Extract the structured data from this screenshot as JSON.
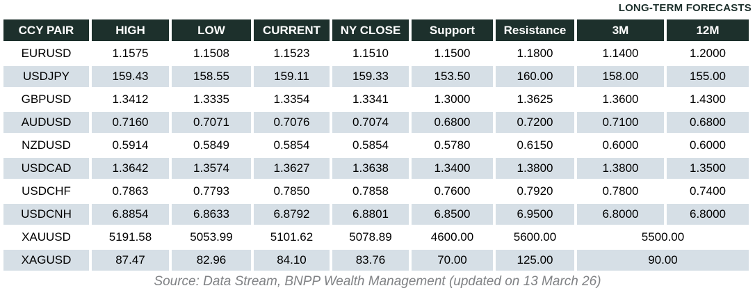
{
  "page": {
    "forecast_group_label": "LONG-TERM FORECASTS",
    "source_note": "Source: Data Stream, BNPP Wealth Management (updated on 13 March 26)"
  },
  "colors": {
    "header_bg": "#1d302c",
    "header_text": "#ffffff",
    "row_alt_bg": "#d6dfe6",
    "source_color": "#808285"
  },
  "table": {
    "columns": [
      "CCY PAIR",
      "HIGH",
      "LOW",
      "CURRENT",
      "NY CLOSE",
      "Support",
      "Resistance",
      "3M",
      "12M"
    ],
    "rows": [
      {
        "pair": "EURUSD",
        "high": "1.1575",
        "low": "1.1508",
        "current": "1.1523",
        "ny_close": "1.1510",
        "support": "1.1500",
        "resistance": "1.1800",
        "m3": "1.1400",
        "m12": "1.2000"
      },
      {
        "pair": "USDJPY",
        "high": "159.43",
        "low": "158.55",
        "current": "159.11",
        "ny_close": "159.33",
        "support": "153.50",
        "resistance": "160.00",
        "m3": "158.00",
        "m12": "155.00"
      },
      {
        "pair": "GBPUSD",
        "high": "1.3412",
        "low": "1.3335",
        "current": "1.3354",
        "ny_close": "1.3341",
        "support": "1.3000",
        "resistance": "1.3625",
        "m3": "1.3600",
        "m12": "1.4300"
      },
      {
        "pair": "AUDUSD",
        "high": "0.7160",
        "low": "0.7071",
        "current": "0.7076",
        "ny_close": "0.7074",
        "support": "0.6800",
        "resistance": "0.7200",
        "m3": "0.7100",
        "m12": "0.6800"
      },
      {
        "pair": "NZDUSD",
        "high": "0.5914",
        "low": "0.5849",
        "current": "0.5854",
        "ny_close": "0.5854",
        "support": "0.5780",
        "resistance": "0.6150",
        "m3": "0.6000",
        "m12": "0.6000"
      },
      {
        "pair": "USDCAD",
        "high": "1.3642",
        "low": "1.3574",
        "current": "1.3627",
        "ny_close": "1.3638",
        "support": "1.3400",
        "resistance": "1.3800",
        "m3": "1.3800",
        "m12": "1.3500"
      },
      {
        "pair": "USDCHF",
        "high": "0.7863",
        "low": "0.7793",
        "current": "0.7850",
        "ny_close": "0.7858",
        "support": "0.7600",
        "resistance": "0.7920",
        "m3": "0.7800",
        "m12": "0.7400"
      },
      {
        "pair": "USDCNH",
        "high": "6.8854",
        "low": "6.8633",
        "current": "6.8792",
        "ny_close": "6.8801",
        "support": "6.8500",
        "resistance": "6.9500",
        "m3": "6.8000",
        "m12": "6.8000"
      },
      {
        "pair": "XAUUSD",
        "high": "5191.58",
        "low": "5053.99",
        "current": "5101.62",
        "ny_close": "5078.89",
        "support": "4600.00",
        "resistance": "5600.00",
        "forecast_merged": "5500.00"
      },
      {
        "pair": "XAGUSD",
        "high": "87.47",
        "low": "82.96",
        "current": "84.10",
        "ny_close": "83.76",
        "support": "70.00",
        "resistance": "125.00",
        "forecast_merged": "90.00"
      }
    ]
  }
}
